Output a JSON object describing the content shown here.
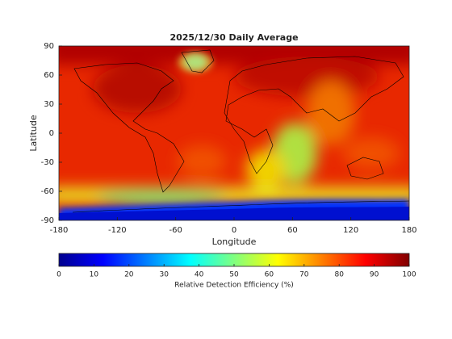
{
  "chart_data": {
    "type": "heatmap-map",
    "title": "2025/12/30 Daily Average",
    "x_label": "Longitude",
    "y_label": "Latitude",
    "xlim": [
      -180,
      180
    ],
    "xticks": [
      -180,
      -120,
      -60,
      0,
      60,
      120,
      180
    ],
    "ylim": [
      -90,
      90
    ],
    "yticks": [
      90,
      60,
      30,
      0,
      -30,
      -60,
      -90
    ],
    "colorbar": {
      "label": "Relative Detection Efficiency (%)",
      "colormap": "jet",
      "clim": [
        0,
        100
      ],
      "ticks": [
        0,
        10,
        20,
        30,
        40,
        50,
        60,
        70,
        80,
        90,
        100
      ]
    }
  }
}
